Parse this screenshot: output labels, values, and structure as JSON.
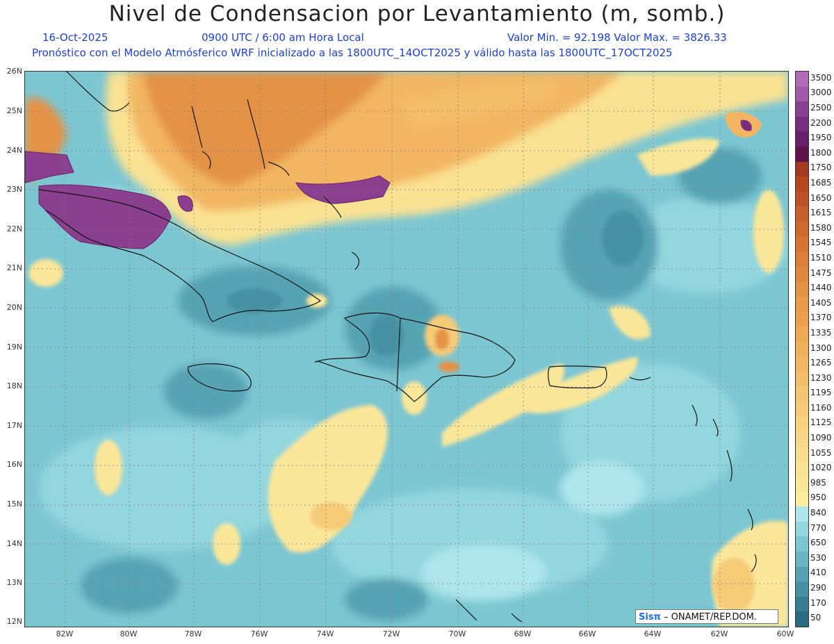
{
  "title": "Nivel de Condensacion por Levantamiento (m, somb.)",
  "date": "16-Oct-2025",
  "time": "0900 UTC / 6:00 am Hora Local",
  "minmax": "Valor Min. = 92.198   Valor Max. = 3826.33",
  "forecast": "Pronóstico con el Modelo Atmósferico WRF inicializado a las 1800UTC_14OCT2025 y válido hasta las  1800UTC_17OCT2025",
  "lat_labels": [
    "26N",
    "25N",
    "24N",
    "23N",
    "22N",
    "21N",
    "20N",
    "19N",
    "18N",
    "17N",
    "16N",
    "15N",
    "14N",
    "13N",
    "12N"
  ],
  "lon_labels": [
    "82W",
    "80W",
    "78W",
    "76W",
    "74W",
    "72W",
    "70W",
    "68W",
    "66W",
    "64W",
    "62W",
    "60W"
  ],
  "legend": {
    "levels": [
      "3500",
      "3000",
      "2500",
      "2200",
      "1950",
      "1800",
      "1750",
      "1685",
      "1650",
      "1615",
      "1580",
      "1545",
      "1510",
      "1475",
      "1440",
      "1405",
      "1370",
      "1335",
      "1300",
      "1265",
      "1230",
      "1195",
      "1160",
      "1125",
      "1090",
      "1055",
      "1020",
      "985",
      "950",
      "840",
      "770",
      "650",
      "530",
      "410",
      "290",
      "170",
      "50"
    ],
    "colors": [
      "#b56ab8",
      "#a05aa8",
      "#8a3f8f",
      "#7a2d7f",
      "#6a1f6a",
      "#5e1248",
      "#a33a1f",
      "#b5461f",
      "#c0522a",
      "#c85f2a",
      "#cf6a2f",
      "#d67434",
      "#dc7d38",
      "#e0873d",
      "#e49244",
      "#e89b49",
      "#ec9f4d",
      "#efa853",
      "#f1b05a",
      "#f2b662",
      "#f4bd69",
      "#f5c672",
      "#f6cb78",
      "#f7d27f",
      "#f8d886",
      "#f9dd8c",
      "#fae293",
      "#fbe79a",
      "#fcee9e",
      "#aee6ec",
      "#93d6de",
      "#7cc6d2",
      "#69b5c3",
      "#57a3b3",
      "#4791a4",
      "#367d93",
      "#2b6b82"
    ]
  },
  "credit": {
    "logo": "Sisπ",
    "text": "– ONAMET/REP.DOM."
  }
}
